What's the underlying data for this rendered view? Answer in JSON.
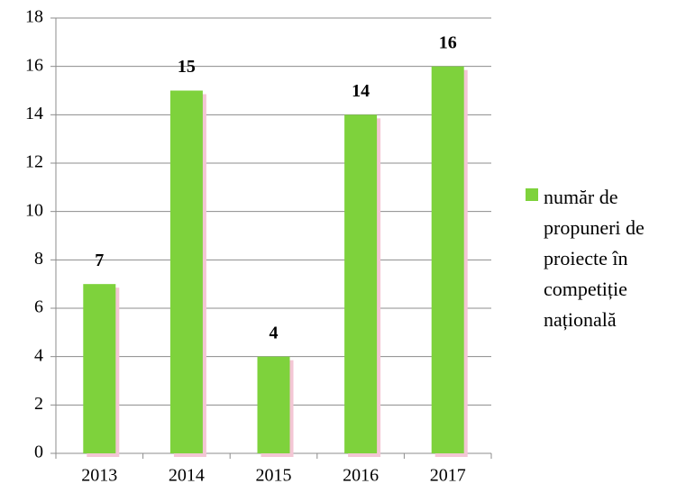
{
  "chart_data": {
    "type": "bar",
    "categories": [
      "2013",
      "2014",
      "2015",
      "2016",
      "2017"
    ],
    "series": [
      {
        "name": "număr de propuneri de proiecte în competiție națională",
        "color": "#7ed23c",
        "values": [
          7,
          15,
          4,
          14,
          16
        ]
      }
    ],
    "ylim": [
      0,
      18
    ],
    "yticks": [
      0,
      2,
      4,
      6,
      8,
      10,
      12,
      14,
      16,
      18
    ],
    "grid": true,
    "legend": "right"
  }
}
